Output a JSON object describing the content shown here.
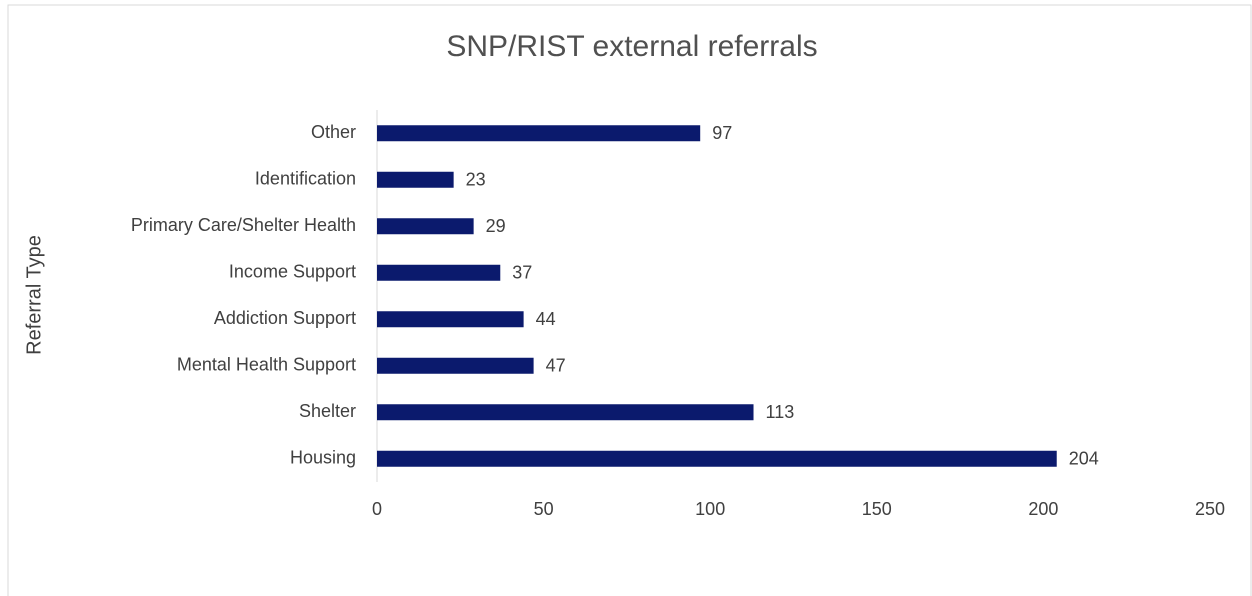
{
  "chart_data": {
    "type": "bar",
    "orientation": "horizontal",
    "title": "SNP/RIST external referrals",
    "y_label": "Referral Type",
    "categories": [
      "Other",
      "Identification",
      "Primary Care/Shelter Health",
      "Income Support",
      "Addiction Support",
      "Mental Health Support",
      "Shelter",
      "Housing"
    ],
    "values": [
      97,
      23,
      29,
      37,
      44,
      47,
      113,
      204
    ],
    "color": "#0b1a6d",
    "xlim": [
      0,
      250
    ],
    "xticks": [
      0,
      50,
      100,
      150,
      200,
      250
    ],
    "grid": false
  }
}
